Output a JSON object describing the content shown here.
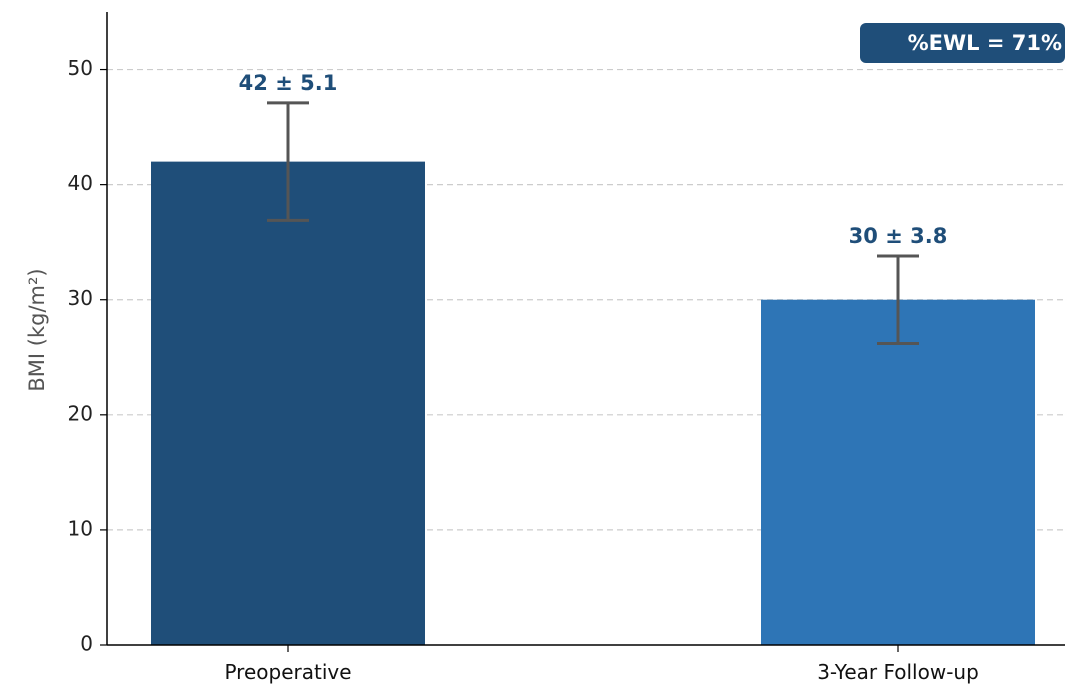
{
  "chart_data": {
    "type": "bar",
    "categories": [
      "Preoperative",
      "3-Year Follow-up"
    ],
    "values": [
      42,
      30
    ],
    "errors": [
      5.1,
      3.8
    ],
    "data_labels": [
      "42 ± 5.1",
      "30 ± 3.8"
    ],
    "bar_colors": [
      "#1f4e79",
      "#2e75b6"
    ],
    "xlabel": "",
    "ylabel": "BMI (kg/m²)",
    "ylim": [
      0,
      55
    ],
    "yticks": [
      0,
      10,
      20,
      30,
      40,
      50
    ],
    "grid": "horizontal dashed",
    "annotation": "%EWL = 71%",
    "annotation_placement": "top-right"
  },
  "colors": {
    "label_color": "#1f4e79",
    "badge_bg": "#1f4e79",
    "error_bar": "#555555",
    "grid": "#cccccc",
    "axis": "#000000"
  }
}
